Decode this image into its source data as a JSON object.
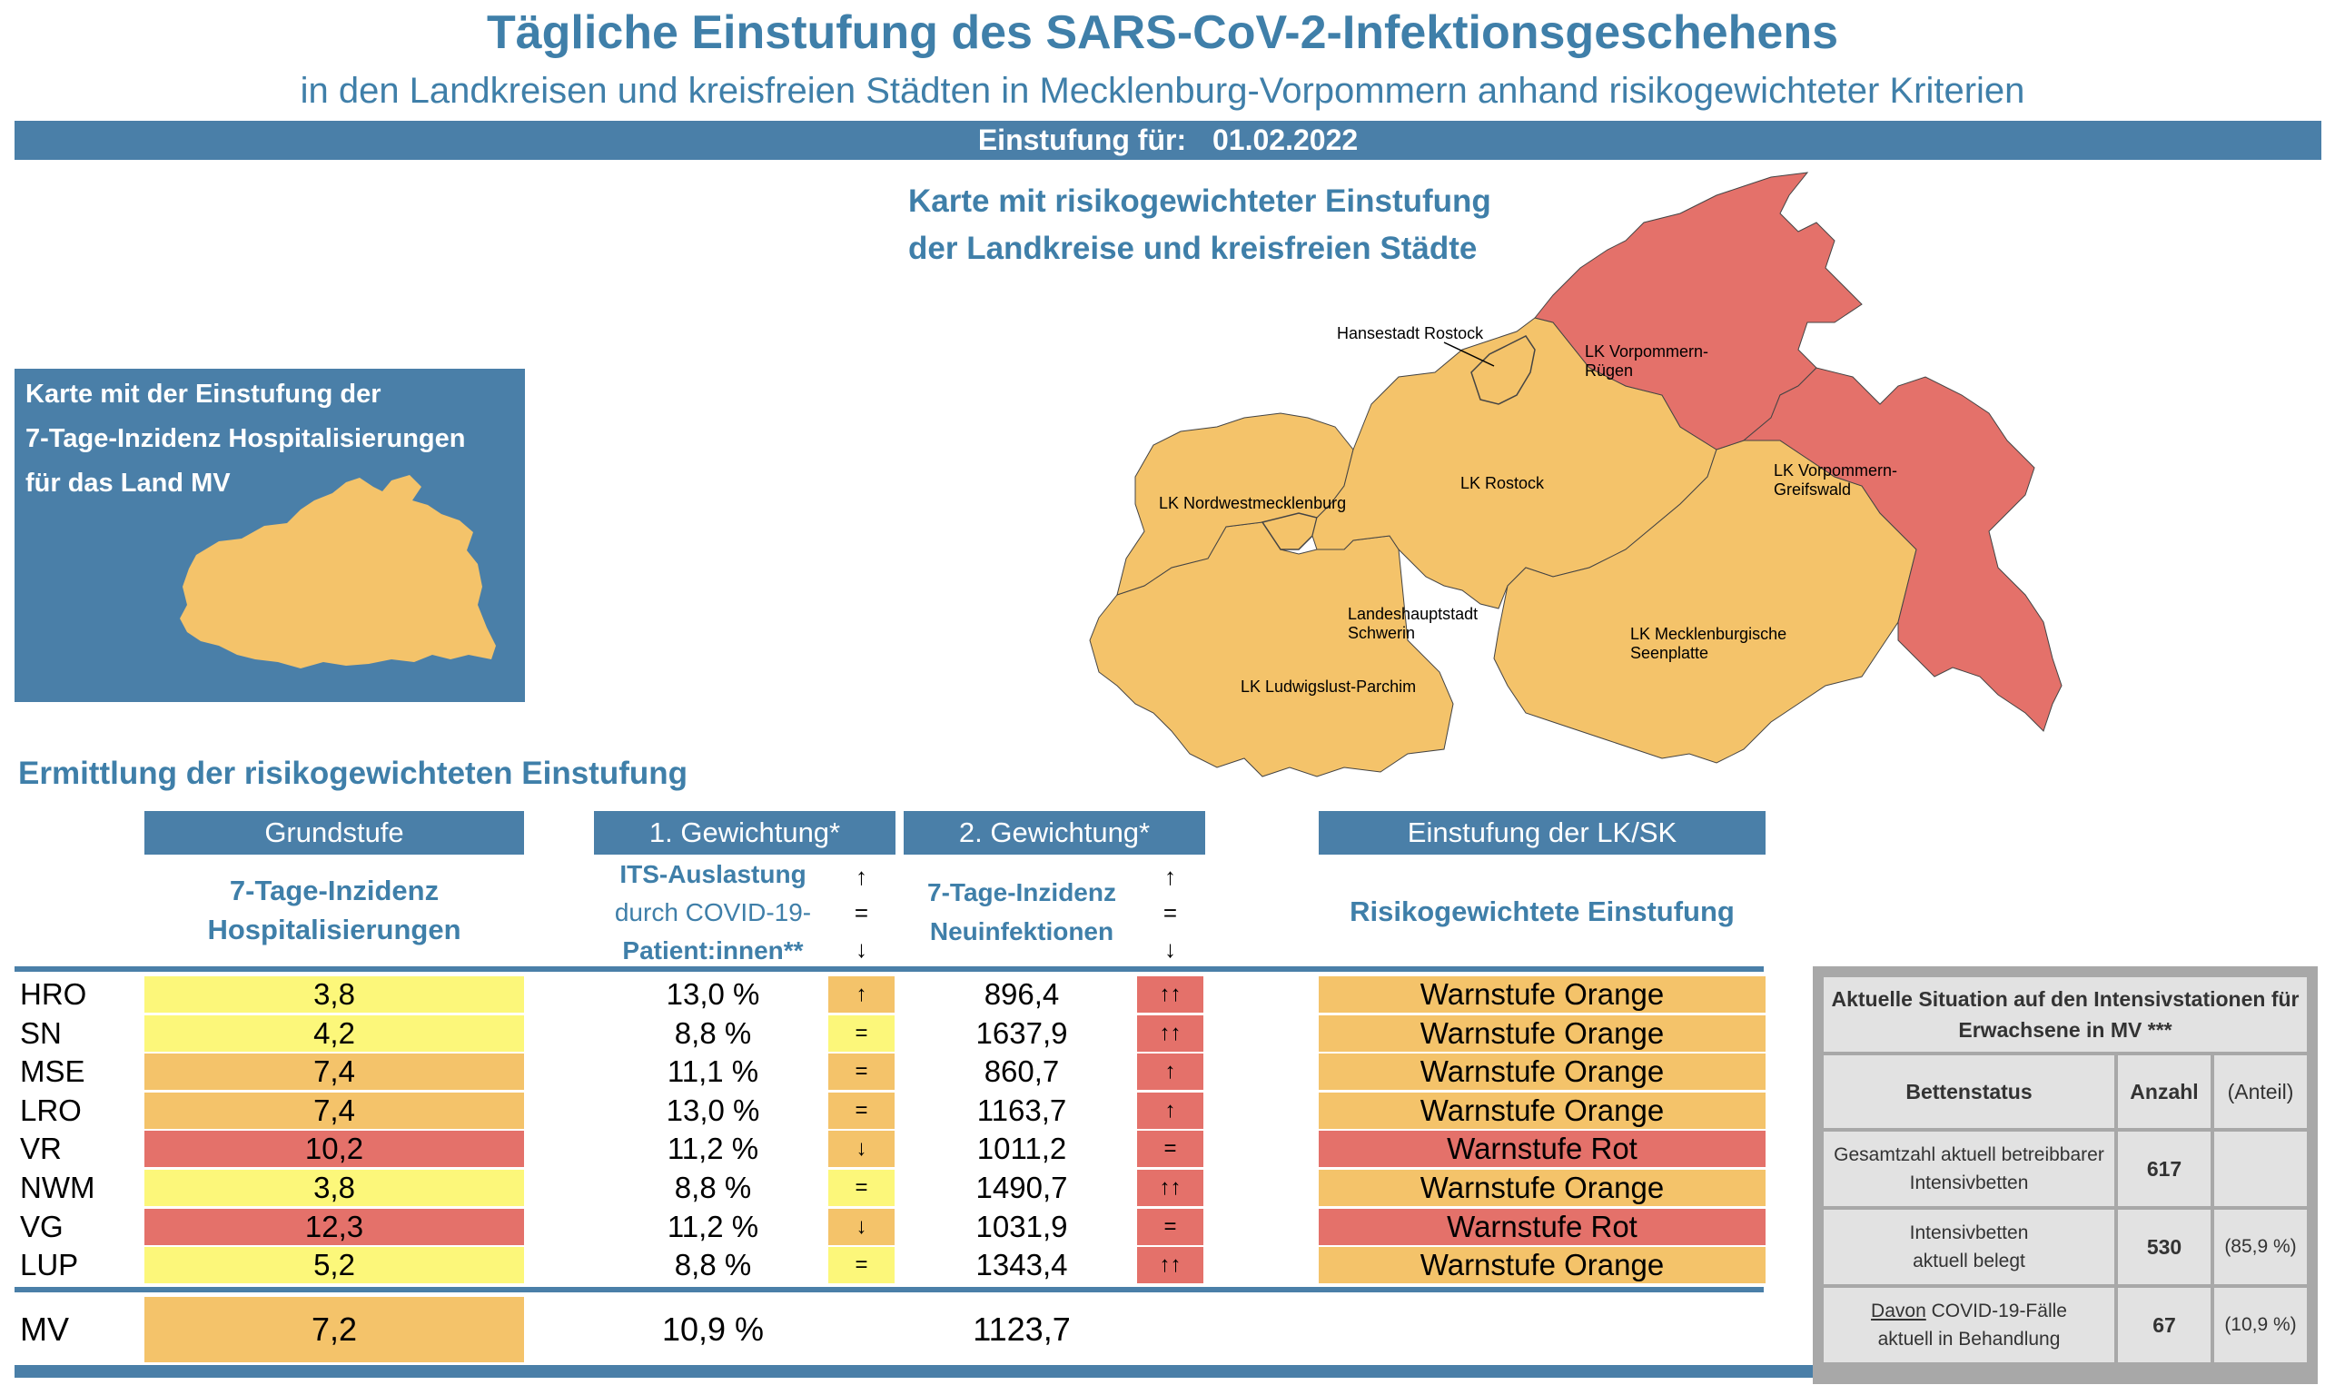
{
  "header": {
    "title": "Tägliche Einstufung des SARS-CoV-2-Infektionsgeschehens",
    "subtitle": "in den Landkreisen und kreisfreien Städten in Mecklenburg-Vorpommern anhand risikogewichteter Kriterien",
    "date_label": "Einstufung für:",
    "date_value": "01.02.2022"
  },
  "map": {
    "title_line1": "Karte mit risikogewichteter Einstufung",
    "title_line2": "der Landkreise und kreisfreien Städte",
    "labels": {
      "hro": "Hansestadt Rostock",
      "vr1": "LK Vorpommern-",
      "vr2": "Rügen",
      "vg1": "LK Vorpommern-",
      "vg2": "Greifswald",
      "nwm": "LK Nordwestmecklenburg",
      "lro": "LK Rostock",
      "sn1": "Landeshauptstadt",
      "sn2": "Schwerin",
      "mse1": "LK Mecklenburgische",
      "mse2": "Seenplatte",
      "lup": "LK Ludwigslust-Parchim"
    },
    "colors": {
      "orange": "#f4c36a",
      "red": "#e4716a"
    }
  },
  "mini_map": {
    "title_line1": "Karte mit der Einstufung der",
    "title_line2": "7-Tage-Inzidenz Hospitalisierungen",
    "title_line3": "für das Land MV"
  },
  "section_title": "Ermittlung der risikogewichteten Einstufung",
  "columns": {
    "grundstufe": "Grundstufe",
    "grundstufe_sub1": "7-Tage-Inzidenz",
    "grundstufe_sub2": "Hospitalisierungen",
    "gew1": "1. Gewichtung*",
    "gew1_sub1": "ITS-Auslastung",
    "gew1_sub2": "durch COVID-19-",
    "gew1_sub3": "Patient:innen**",
    "gew2": "2. Gewichtung*",
    "gew2_sub1": "7-Tage-Inzidenz",
    "gew2_sub2": "Neuinfektionen",
    "legend_up": "↑",
    "legend_eq": "=",
    "legend_down": "↓",
    "einstufung": "Einstufung der LK/SK",
    "einstufung_sub": "Risikogewichtete Einstufung"
  },
  "rows": [
    {
      "lk": "HRO",
      "gs": "3,8",
      "gs_color": "yellow",
      "its": "13,0 %",
      "its_trend": "↑",
      "its_color": "orange",
      "inz": "896,4",
      "inz_trend": "↑↑",
      "ein": "Warnstufe Orange",
      "ein_color": "orange"
    },
    {
      "lk": "SN",
      "gs": "4,2",
      "gs_color": "yellow",
      "its": "8,8 %",
      "its_trend": "=",
      "its_color": "yellow",
      "inz": "1637,9",
      "inz_trend": "↑↑",
      "ein": "Warnstufe Orange",
      "ein_color": "orange"
    },
    {
      "lk": "MSE",
      "gs": "7,4",
      "gs_color": "orange",
      "its": "11,1 %",
      "its_trend": "=",
      "its_color": "orange",
      "inz": "860,7",
      "inz_trend": "↑",
      "ein": "Warnstufe Orange",
      "ein_color": "orange"
    },
    {
      "lk": "LRO",
      "gs": "7,4",
      "gs_color": "orange",
      "its": "13,0 %",
      "its_trend": "=",
      "its_color": "orange",
      "inz": "1163,7",
      "inz_trend": "↑",
      "ein": "Warnstufe Orange",
      "ein_color": "orange"
    },
    {
      "lk": "VR",
      "gs": "10,2",
      "gs_color": "red",
      "its": "11,2 %",
      "its_trend": "↓",
      "its_color": "orange",
      "inz": "1011,2",
      "inz_trend": "=",
      "ein": "Warnstufe Rot",
      "ein_color": "red"
    },
    {
      "lk": "NWM",
      "gs": "3,8",
      "gs_color": "yellow",
      "its": "8,8 %",
      "its_trend": "=",
      "its_color": "yellow",
      "inz": "1490,7",
      "inz_trend": "↑↑",
      "ein": "Warnstufe Orange",
      "ein_color": "orange"
    },
    {
      "lk": "VG",
      "gs": "12,3",
      "gs_color": "red",
      "its": "11,2 %",
      "its_trend": "↓",
      "its_color": "orange",
      "inz": "1031,9",
      "inz_trend": "=",
      "ein": "Warnstufe Rot",
      "ein_color": "red"
    },
    {
      "lk": "LUP",
      "gs": "5,2",
      "gs_color": "yellow",
      "its": "8,8 %",
      "its_trend": "=",
      "its_color": "yellow",
      "inz": "1343,4",
      "inz_trend": "↑↑",
      "ein": "Warnstufe Orange",
      "ein_color": "orange"
    }
  ],
  "total": {
    "lk": "MV",
    "gs": "7,2",
    "its": "10,9 %",
    "inz": "1123,7"
  },
  "icu": {
    "title_line1": "Aktuelle Situation auf den Intensivstationen für",
    "title_line2": "Erwachsene in MV ***",
    "col_status": "Bettenstatus",
    "col_anzahl": "Anzahl",
    "col_anteil": "(Anteil)",
    "rows": [
      {
        "label1": "Gesamtzahl aktuell betreibbarer",
        "label2": "Intensivbetten",
        "anzahl": "617",
        "anteil": ""
      },
      {
        "label1": "Intensivbetten",
        "label2": "aktuell belegt",
        "anzahl": "530",
        "anteil": "(85,9 %)"
      },
      {
        "label1_u": "Davon",
        "label1_rest": " COVID-19-Fälle",
        "label2": "aktuell in Behandlung",
        "anzahl": "67",
        "anteil": "(10,9 %)"
      }
    ]
  }
}
